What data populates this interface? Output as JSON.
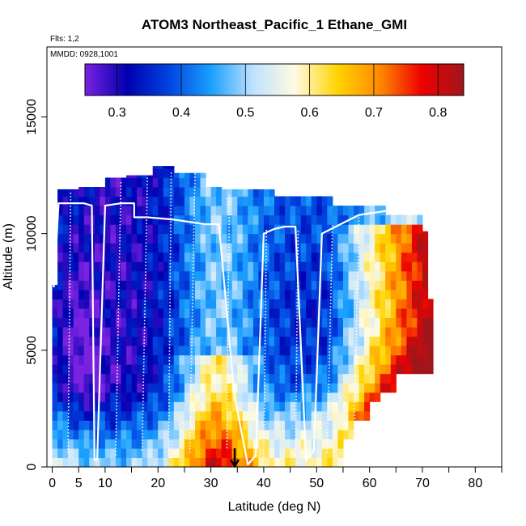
{
  "chart_data": {
    "type": "heatmap",
    "title": "ATOM3 Northeast_Pacific_1 Ethane_GMI",
    "notes": {
      "flights": "Flts: 1,2",
      "mmdd": "MMDD: 0928,1001"
    },
    "xlabel": "Latitude (deg N)",
    "ylabel": "Altitude (m)",
    "xlim": [
      -1,
      85
    ],
    "ylim": [
      0,
      18000
    ],
    "x_ticks": [
      0,
      5,
      10,
      20,
      30,
      40,
      50,
      60,
      70,
      80
    ],
    "x_minor_ticks": [
      15,
      25,
      35,
      45,
      55,
      65,
      75,
      85
    ],
    "y_ticks": [
      0,
      5000,
      10000,
      15000
    ],
    "colorbar": {
      "range": [
        0.25,
        0.84
      ],
      "ticks": [
        0.3,
        0.4,
        0.5,
        0.6,
        0.7,
        0.8
      ],
      "stops": [
        "#7a22e0",
        "#0000b0",
        "#0044e0",
        "#1aa0ff",
        "#bfe2ff",
        "#fffbe0",
        "#ffd400",
        "#ff8a00",
        "#ee0000",
        "#a0161a"
      ],
      "placement": "top"
    },
    "marker_arrow_latitude": 34.5,
    "flight_track": [
      [
        0.3,
        7700
      ],
      [
        1.2,
        11300
      ],
      [
        5.5,
        11300
      ],
      [
        6,
        11300
      ],
      [
        7.5,
        11200
      ],
      [
        8,
        300
      ],
      [
        8.5,
        300
      ],
      [
        10,
        11200
      ],
      [
        13,
        11300
      ],
      [
        15.5,
        11300
      ],
      [
        15.5,
        10700
      ],
      [
        18,
        10700
      ],
      [
        23,
        10600
      ],
      [
        29,
        10400
      ],
      [
        31.5,
        10400
      ],
      [
        34.5,
        3000
      ],
      [
        37,
        100
      ],
      [
        38.5,
        500
      ],
      [
        40,
        10000
      ],
      [
        42,
        10200
      ],
      [
        44,
        10300
      ],
      [
        46,
        10300
      ],
      [
        48,
        300
      ],
      [
        49.5,
        700
      ],
      [
        51,
        10000
      ],
      [
        54.5,
        10400
      ],
      [
        58,
        10800
      ],
      [
        64,
        11000
      ],
      [
        70.5,
        10900
      ]
    ]
  }
}
